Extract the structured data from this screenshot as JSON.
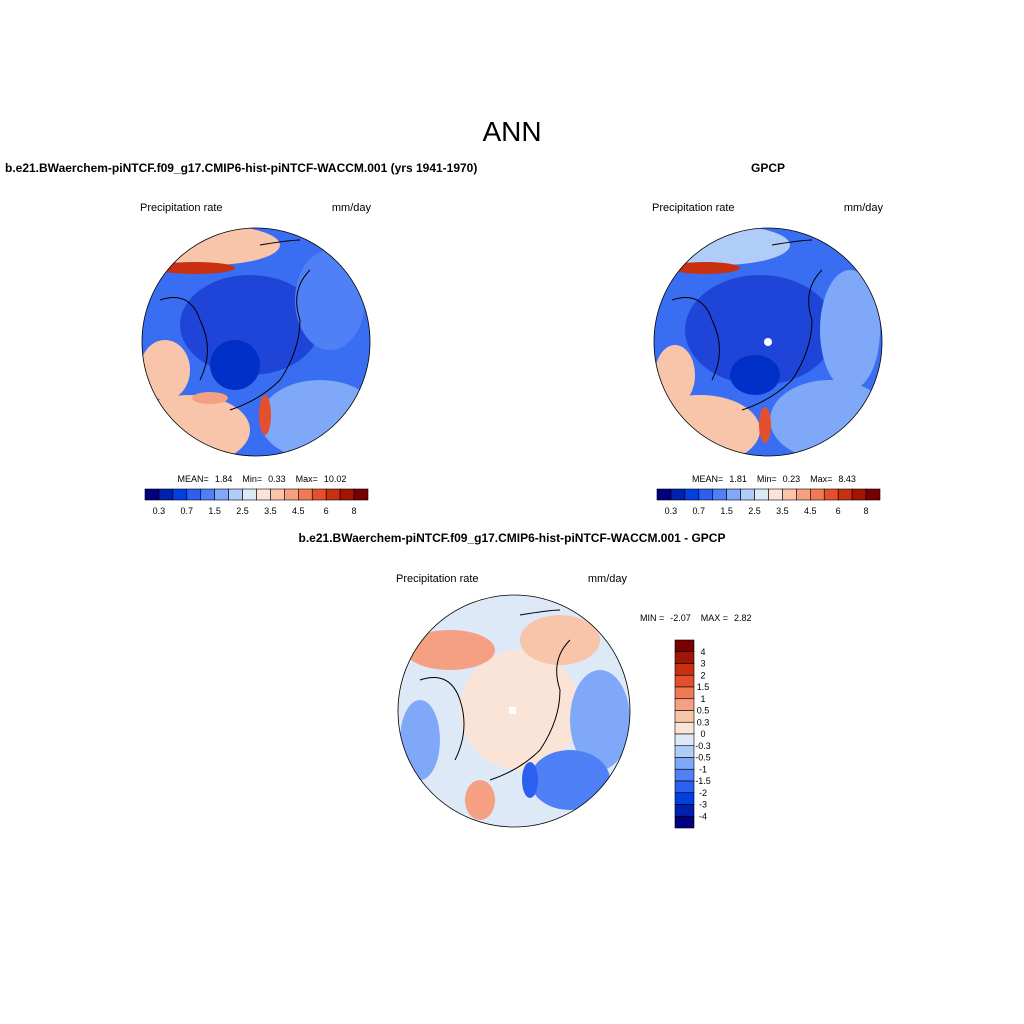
{
  "title": "ANN",
  "panels": [
    {
      "title": "b.e21.BWaerchem-piNTCF.f09_g17.CMIP6-hist-piNTCF-WACCM.001 (yrs 1941-1970)",
      "left_label": "Precipitation rate",
      "right_label": "mm/day",
      "stats": [
        "MEAN=",
        "1.84",
        "Min=",
        "0.33",
        "Max=",
        "10.02"
      ],
      "colorbar": {
        "labels": [
          "0.3",
          "0.7",
          "1.5",
          "2.5",
          "3.5",
          "4.5",
          "6",
          "8"
        ],
        "colors": [
          "#000080",
          "#0020b0",
          "#0040e0",
          "#2a5ff0",
          "#5080f5",
          "#80a8f8",
          "#b0ccf8",
          "#dde9f7",
          "#fae4d8",
          "#f8c4aa",
          "#f5a082",
          "#f07a55",
          "#e4502e",
          "#c8300f",
          "#a01505",
          "#780000"
        ]
      }
    },
    {
      "title": "GPCP",
      "left_label": "Precipitation rate",
      "right_label": "mm/day",
      "stats": [
        "MEAN=",
        "1.81",
        "Min=",
        "0.23",
        "Max=",
        "8.43"
      ],
      "colorbar": {
        "labels": [
          "0.3",
          "0.7",
          "1.5",
          "2.5",
          "3.5",
          "4.5",
          "6",
          "8"
        ],
        "colors": [
          "#000080",
          "#0020b0",
          "#0040e0",
          "#2a5ff0",
          "#5080f5",
          "#80a8f8",
          "#b0ccf8",
          "#dde9f7",
          "#fae4d8",
          "#f8c4aa",
          "#f5a082",
          "#f07a55",
          "#e4502e",
          "#c8300f",
          "#a01505",
          "#780000"
        ]
      }
    },
    {
      "title": "b.e21.BWaerchem-piNTCF.f09_g17.CMIP6-hist-piNTCF-WACCM.001 - GPCP",
      "left_label": "Precipitation rate",
      "right_label": "mm/day",
      "stats": [
        "MIN =",
        "-2.07",
        "MAX =",
        "2.82"
      ],
      "colorbar": {
        "labels": [
          "4",
          "3",
          "2",
          "1.5",
          "1",
          "0.5",
          "0.3",
          "0",
          "-0.3",
          "-0.5",
          "-1",
          "-1.5",
          "-2",
          "-3",
          "-4"
        ],
        "colors": [
          "#780000",
          "#a01505",
          "#c8300f",
          "#e4502e",
          "#f07a55",
          "#f5a082",
          "#f8c4aa",
          "#fae4d8",
          "#dde9f7",
          "#b0ccf8",
          "#80a8f8",
          "#5080f5",
          "#2a5ff0",
          "#0040e0",
          "#0020b0",
          "#000080"
        ]
      }
    }
  ]
}
